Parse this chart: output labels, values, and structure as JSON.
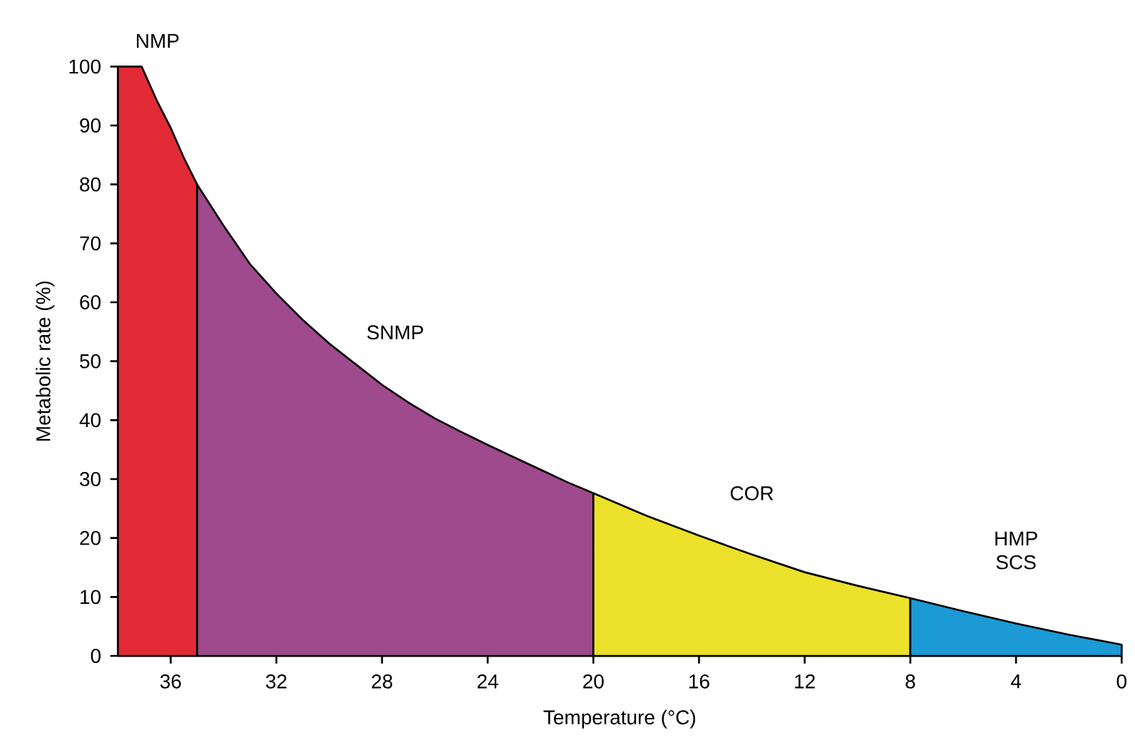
{
  "chart_data": {
    "type": "area",
    "xlabel": "Temperature (°C)",
    "ylabel": "Metabolic rate (%)",
    "xlim": [
      38,
      0
    ],
    "xticks": [
      36,
      32,
      28,
      24,
      20,
      16,
      12,
      8,
      4,
      0
    ],
    "ylim": [
      0,
      100
    ],
    "yticks": [
      0,
      10,
      20,
      30,
      40,
      50,
      60,
      70,
      80,
      90,
      100
    ],
    "series": [
      {
        "name": "NMP",
        "color": "#e22b37",
        "x": [
          38,
          37.1,
          36.5,
          36,
          35.5,
          35
        ],
        "values": [
          100,
          100,
          94,
          89.6,
          84.5,
          80
        ]
      },
      {
        "name": "SNMP",
        "color": "#9e4a8c",
        "x": [
          35,
          34,
          33,
          32,
          31,
          30,
          29,
          28,
          27,
          26,
          25,
          24,
          23,
          22,
          21,
          20
        ],
        "values": [
          80,
          73,
          66.5,
          61.5,
          57,
          53,
          49.5,
          46,
          43,
          40.3,
          38,
          35.8,
          33.7,
          31.6,
          29.5,
          27.6
        ]
      },
      {
        "name": "COR",
        "color": "#ebe12a",
        "x": [
          20,
          18,
          16,
          14,
          12,
          10,
          8
        ],
        "values": [
          27.6,
          23.8,
          20.4,
          17.2,
          14.2,
          11.9,
          9.8
        ]
      },
      {
        "name": "HMP SCS",
        "color": "#1b9ad6",
        "x": [
          8,
          6,
          4,
          2,
          0
        ],
        "values": [
          9.8,
          7.6,
          5.5,
          3.6,
          1.9
        ]
      }
    ]
  }
}
